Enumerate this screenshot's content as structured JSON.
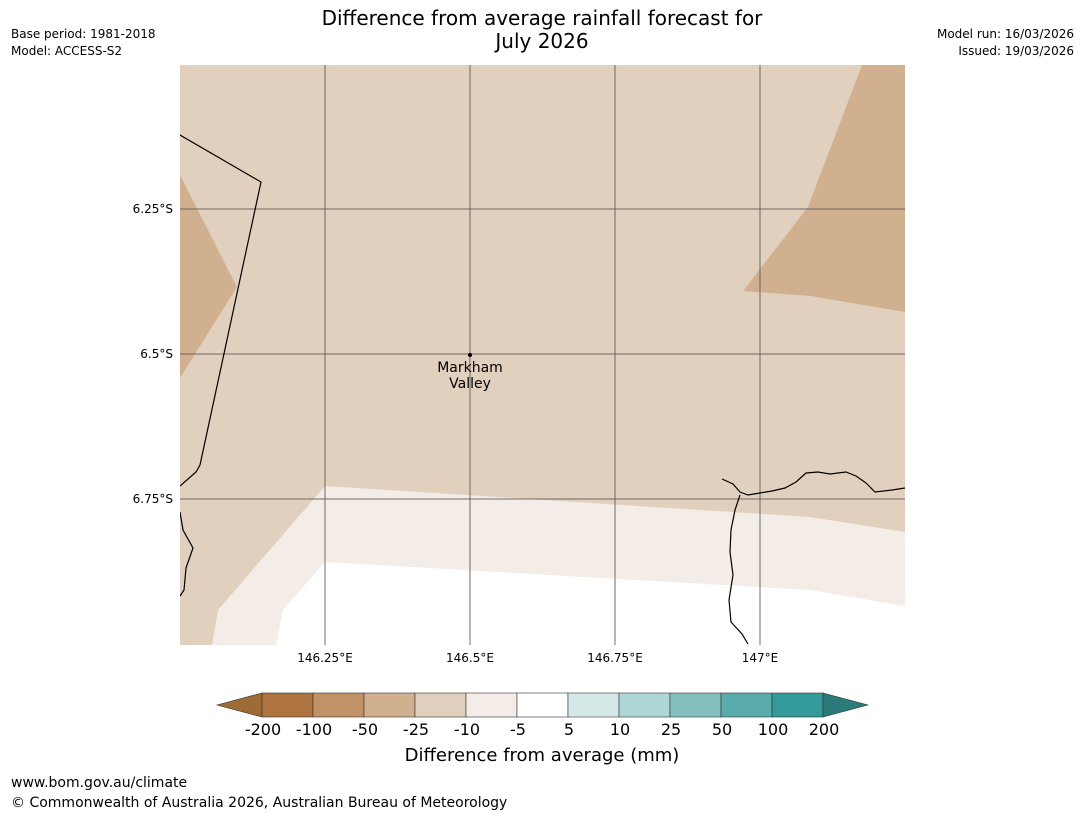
{
  "title_line1": "Difference from average rainfall forecast for",
  "title_line2": "July 2026",
  "meta_left": {
    "base_period": "Base period: 1981-2018",
    "model": "Model: ACCESS-S2"
  },
  "meta_right": {
    "model_run": "Model run: 16/03/2026",
    "issued": "Issued: 19/03/2026"
  },
  "lat_labels": [
    "6.25°S",
    "6.5°S",
    "6.75°S"
  ],
  "lon_labels": [
    "146.25°E",
    "146.5°E",
    "146.75°E",
    "147°E"
  ],
  "place": {
    "line1": "Markham",
    "line2": "Valley"
  },
  "colorbar": {
    "ticks": [
      "-200",
      "-100",
      "-50",
      "-25",
      "-10",
      "-5",
      "5",
      "10",
      "25",
      "50",
      "100",
      "200"
    ],
    "colors": [
      "#9e6a36",
      "#ad743f",
      "#c19266",
      "#d1b090",
      "#e2d0bf",
      "#f4ece6",
      "#ffffff",
      "#d5e8e8",
      "#aed6d6",
      "#83c0bd",
      "#5aabab",
      "#339999",
      "#2b7b7b"
    ],
    "title": "Difference from average (mm)"
  },
  "map_colors": {
    "band_minus10_25": "#e2d0bf",
    "band_minus25_50": "#d1b090",
    "band_minus5_10": "#f4ece6",
    "band_near": "#ffffff",
    "grid": "#555555",
    "boundary": "#000000"
  },
  "footer": {
    "url": "www.bom.gov.au/climate",
    "copyright": "© Commonwealth of Australia 2026, Australian Bureau of Meteorology"
  }
}
